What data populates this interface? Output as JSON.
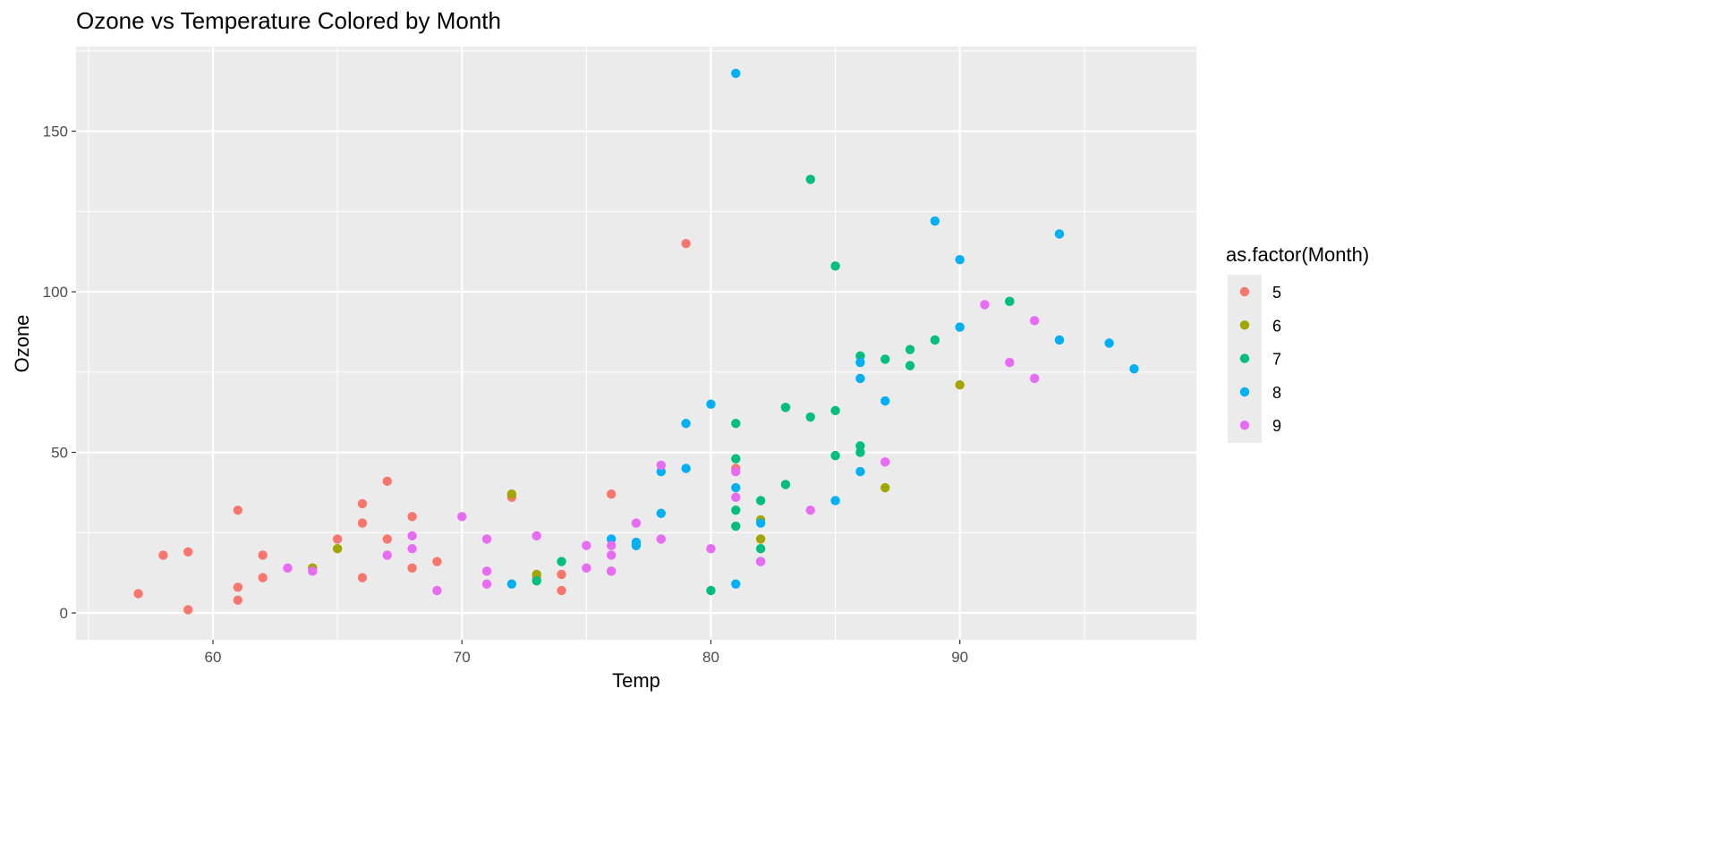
{
  "chart_data": {
    "type": "scatter",
    "title": "Ozone vs Temperature Colored by Month",
    "xlabel": "Temp",
    "ylabel": "Ozone",
    "xlim": [
      54.5,
      99.5
    ],
    "ylim": [
      -8.35,
      176.35
    ],
    "xticks": [
      "60",
      "70",
      "80",
      "90"
    ],
    "xtick_values": [
      60,
      70,
      80,
      90
    ],
    "yticks": [
      "0",
      "50",
      "100",
      "150"
    ],
    "ytick_values": [
      0,
      50,
      100,
      150
    ],
    "grid": true,
    "legend": {
      "title": "as.factor(Month)",
      "position": "right"
    },
    "series": [
      {
        "name": "5",
        "color": "#F8766D",
        "points": [
          [
            67,
            41
          ],
          [
            72,
            36
          ],
          [
            74,
            12
          ],
          [
            62,
            18
          ],
          [
            66,
            28
          ],
          [
            65,
            23
          ],
          [
            59,
            19
          ],
          [
            61,
            8
          ],
          [
            74,
            7
          ],
          [
            69,
            16
          ],
          [
            66,
            11
          ],
          [
            68,
            14
          ],
          [
            58,
            18
          ],
          [
            64,
            14
          ],
          [
            66,
            34
          ],
          [
            57,
            6
          ],
          [
            68,
            30
          ],
          [
            62,
            11
          ],
          [
            59,
            1
          ],
          [
            73,
            11
          ],
          [
            61,
            4
          ],
          [
            61,
            32
          ],
          [
            67,
            23
          ],
          [
            81,
            45
          ],
          [
            79,
            115
          ],
          [
            76,
            37
          ]
        ]
      },
      {
        "name": "6",
        "color": "#A3A500",
        "points": [
          [
            82,
            29
          ],
          [
            90,
            71
          ],
          [
            87,
            39
          ],
          [
            82,
            23
          ],
          [
            77,
            21
          ],
          [
            72,
            37
          ],
          [
            65,
            20
          ],
          [
            73,
            12
          ],
          [
            76,
            13
          ],
          [
            64,
            14
          ]
        ]
      },
      {
        "name": "7",
        "color": "#00BF7D",
        "points": [
          [
            84,
            135
          ],
          [
            85,
            49
          ],
          [
            81,
            32
          ],
          [
            83,
            64
          ],
          [
            83,
            40
          ],
          [
            88,
            77
          ],
          [
            92,
            97
          ],
          [
            92,
            97
          ],
          [
            89,
            85
          ],
          [
            73,
            10
          ],
          [
            81,
            27
          ],
          [
            80,
            7
          ],
          [
            81,
            48
          ],
          [
            82,
            35
          ],
          [
            84,
            61
          ],
          [
            87,
            79
          ],
          [
            85,
            63
          ],
          [
            74,
            16
          ],
          [
            86,
            80
          ],
          [
            85,
            108
          ],
          [
            82,
            20
          ],
          [
            86,
            52
          ],
          [
            88,
            82
          ],
          [
            86,
            50
          ],
          [
            83,
            64
          ],
          [
            81,
            59
          ]
        ]
      },
      {
        "name": "8",
        "color": "#00B0F6",
        "points": [
          [
            81,
            39
          ],
          [
            81,
            9
          ],
          [
            82,
            16
          ],
          [
            86,
            78
          ],
          [
            85,
            35
          ],
          [
            87,
            66
          ],
          [
            89,
            122
          ],
          [
            90,
            89
          ],
          [
            90,
            110
          ],
          [
            86,
            44
          ],
          [
            82,
            28
          ],
          [
            80,
            65
          ],
          [
            77,
            22
          ],
          [
            79,
            59
          ],
          [
            76,
            23
          ],
          [
            78,
            31
          ],
          [
            78,
            44
          ],
          [
            77,
            21
          ],
          [
            72,
            9
          ],
          [
            79,
            45
          ],
          [
            81,
            168
          ],
          [
            86,
            73
          ],
          [
            97,
            76
          ],
          [
            94,
            118
          ],
          [
            96,
            84
          ],
          [
            94,
            85
          ]
        ]
      },
      {
        "name": "9",
        "color": "#E76BF3",
        "points": [
          [
            91,
            96
          ],
          [
            92,
            78
          ],
          [
            93,
            73
          ],
          [
            93,
            91
          ],
          [
            87,
            47
          ],
          [
            84,
            32
          ],
          [
            80,
            20
          ],
          [
            78,
            23
          ],
          [
            75,
            21
          ],
          [
            73,
            24
          ],
          [
            81,
            44
          ],
          [
            76,
            21
          ],
          [
            77,
            28
          ],
          [
            71,
            9
          ],
          [
            71,
            13
          ],
          [
            78,
            46
          ],
          [
            67,
            18
          ],
          [
            76,
            13
          ],
          [
            68,
            24
          ],
          [
            82,
            16
          ],
          [
            64,
            13
          ],
          [
            71,
            23
          ],
          [
            81,
            36
          ],
          [
            69,
            7
          ],
          [
            63,
            14
          ],
          [
            70,
            30
          ],
          [
            75,
            14
          ],
          [
            76,
            18
          ],
          [
            68,
            20
          ]
        ]
      }
    ]
  }
}
